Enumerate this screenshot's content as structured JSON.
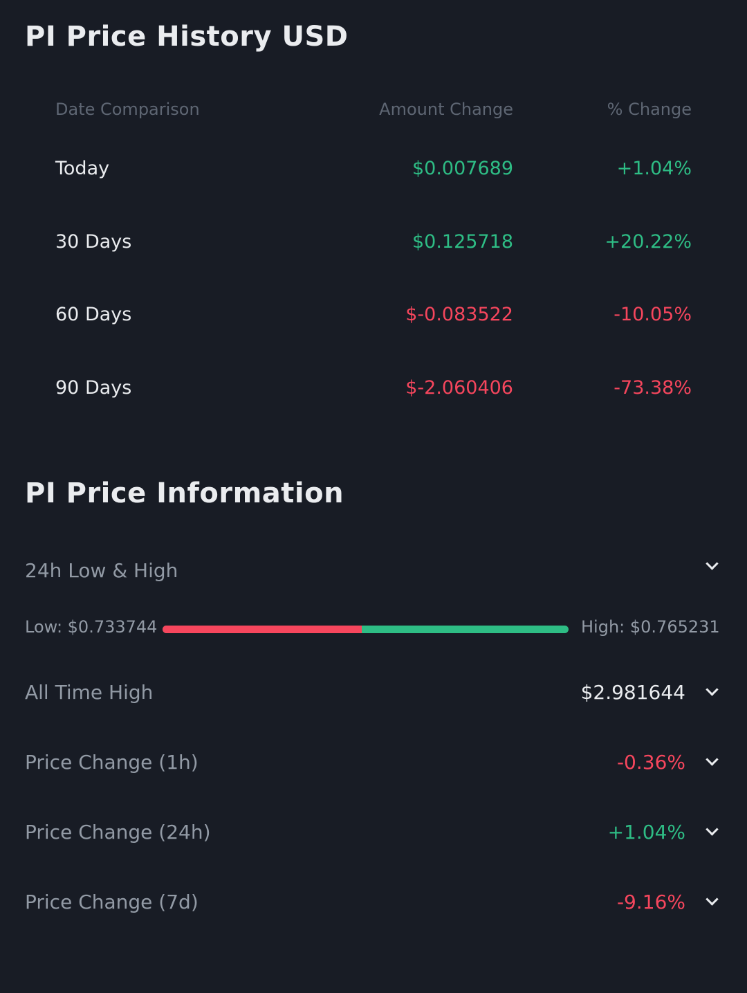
{
  "history": {
    "title": "PI Price History USD",
    "headers": [
      "Date Comparison",
      "Amount Change",
      "% Change"
    ],
    "rows": [
      {
        "label": "Today",
        "amount": "$0.007689",
        "pct": "+1.04%",
        "dir": "up"
      },
      {
        "label": "30 Days",
        "amount": "$0.125718",
        "pct": "+20.22%",
        "dir": "up"
      },
      {
        "label": "60 Days",
        "amount": "$-0.083522",
        "pct": "-10.05%",
        "dir": "down"
      },
      {
        "label": "90 Days",
        "amount": "$-2.060406",
        "pct": "-73.38%",
        "dir": "down"
      }
    ]
  },
  "info": {
    "title": "PI Price Information",
    "low_high": {
      "label": "24h Low & High",
      "low": "Low: $0.733744",
      "high": "High: $0.765231",
      "position_fraction": 0.49
    },
    "items": [
      {
        "label": "All Time High",
        "value": "$2.981644",
        "dir": "neutral"
      },
      {
        "label": "Price Change (1h)",
        "value": "-0.36%",
        "dir": "down"
      },
      {
        "label": "Price Change (24h)",
        "value": "+1.04%",
        "dir": "up"
      },
      {
        "label": "Price Change (7d)",
        "value": "-9.16%",
        "dir": "down"
      }
    ]
  },
  "colors": {
    "up": "#2ebd85",
    "down": "#f6465d",
    "background": "#181c25"
  }
}
